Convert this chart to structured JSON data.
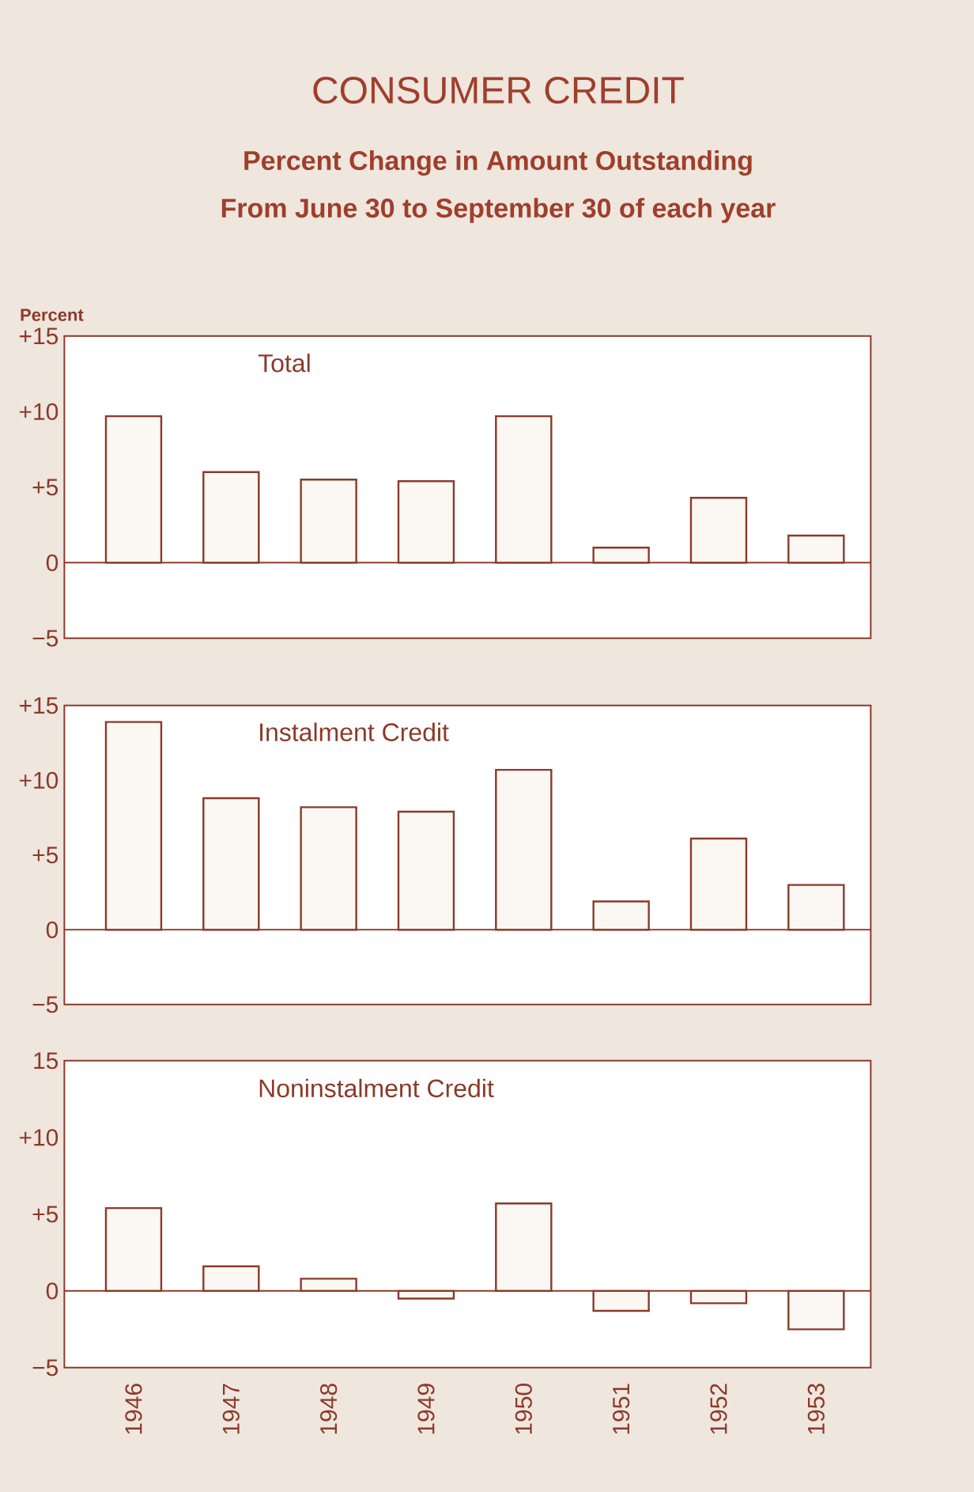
{
  "chart_data": [
    {
      "type": "bar",
      "title": "Total",
      "ylabel": "Percent",
      "categories": [
        "1946",
        "1947",
        "1948",
        "1949",
        "1950",
        "1951",
        "1952",
        "1953"
      ],
      "values": [
        9.7,
        6.0,
        5.5,
        5.4,
        9.7,
        1.0,
        4.3,
        1.8
      ],
      "color": "#fbf8f4",
      "ylim": [
        -5,
        15
      ],
      "yticks": [
        {
          "value": -5,
          "label": "−5"
        },
        0,
        {
          "value": 5,
          "label": "+5"
        },
        {
          "value": 10,
          "label": "+10"
        },
        {
          "value": 15,
          "label": "+15"
        }
      ],
      "tick_labels": "y",
      "ref_lines": [
        {
          "axis": "y",
          "value": 0
        }
      ],
      "annotations": [
        "CONSUMER CREDIT",
        "Percent Change in Amount Outstanding",
        "From June 30 to September 30 of each year"
      ]
    },
    {
      "type": "bar",
      "title": "Instalment Credit",
      "categories": [
        "1946",
        "1947",
        "1948",
        "1949",
        "1950",
        "1951",
        "1952",
        "1953"
      ],
      "values": [
        13.9,
        8.8,
        8.2,
        7.9,
        10.7,
        1.9,
        6.1,
        3.0
      ],
      "color": "#fbf8f4",
      "ylim": [
        -5,
        15
      ],
      "yticks": [
        {
          "value": -5,
          "label": "−5"
        },
        0,
        {
          "value": 5,
          "label": "+5"
        },
        {
          "value": 10,
          "label": "+10"
        },
        {
          "value": 15,
          "label": "+15"
        }
      ],
      "tick_labels": "y",
      "ref_lines": [
        {
          "axis": "y",
          "value": 0
        }
      ]
    },
    {
      "type": "bar",
      "title": "Noninstalment Credit",
      "categories": [
        "1946",
        "1947",
        "1948",
        "1949",
        "1950",
        "1951",
        "1952",
        "1953"
      ],
      "values": [
        5.4,
        1.6,
        0.8,
        -0.5,
        5.7,
        -1.3,
        -0.8,
        -2.5
      ],
      "color": "#fbf8f4",
      "ylim": [
        -5,
        15
      ],
      "yticks": [
        {
          "value": -5,
          "label": "−5"
        },
        0,
        {
          "value": 5,
          "label": "+5"
        },
        {
          "value": 10,
          "label": "+10"
        },
        15
      ],
      "ref_lines": [
        {
          "axis": "y",
          "value": 0
        }
      ]
    }
  ]
}
